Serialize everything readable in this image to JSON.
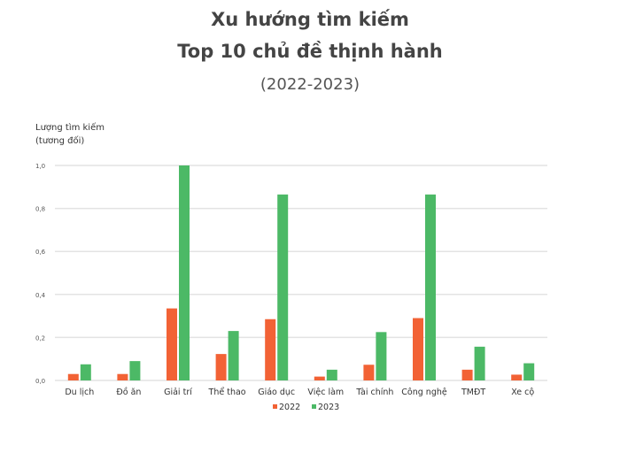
{
  "chart_data": {
    "type": "bar",
    "title": "Xu hướng tìm kiếm",
    "subtitle": "Top 10 chủ đề thịnh hành",
    "period": "(2022-2023)",
    "ylabel_line1": "Lượng tìm kiếm",
    "ylabel_line2": "(tương đối)",
    "xlabel": "",
    "ylim": [
      0,
      1
    ],
    "yticks": [
      "0,0",
      "0,2",
      "0,4",
      "0,6",
      "0,8",
      "1,0"
    ],
    "grid": true,
    "legend_position": "bottom",
    "categories": [
      "Du lịch",
      "Đồ ăn",
      "Giải trí",
      "Thể thao",
      "Giáo dục",
      "Việc làm",
      "Tài chính",
      "Công nghệ",
      "TMĐT",
      "Xe cộ"
    ],
    "series": [
      {
        "name": "2022",
        "color": "#f26235",
        "values": [
          0.03,
          0.03,
          0.335,
          0.123,
          0.285,
          0.018,
          0.073,
          0.29,
          0.05,
          0.027
        ]
      },
      {
        "name": "2023",
        "color": "#4cb966",
        "values": [
          0.075,
          0.09,
          1.0,
          0.23,
          0.865,
          0.05,
          0.225,
          0.865,
          0.157,
          0.08
        ]
      }
    ]
  }
}
